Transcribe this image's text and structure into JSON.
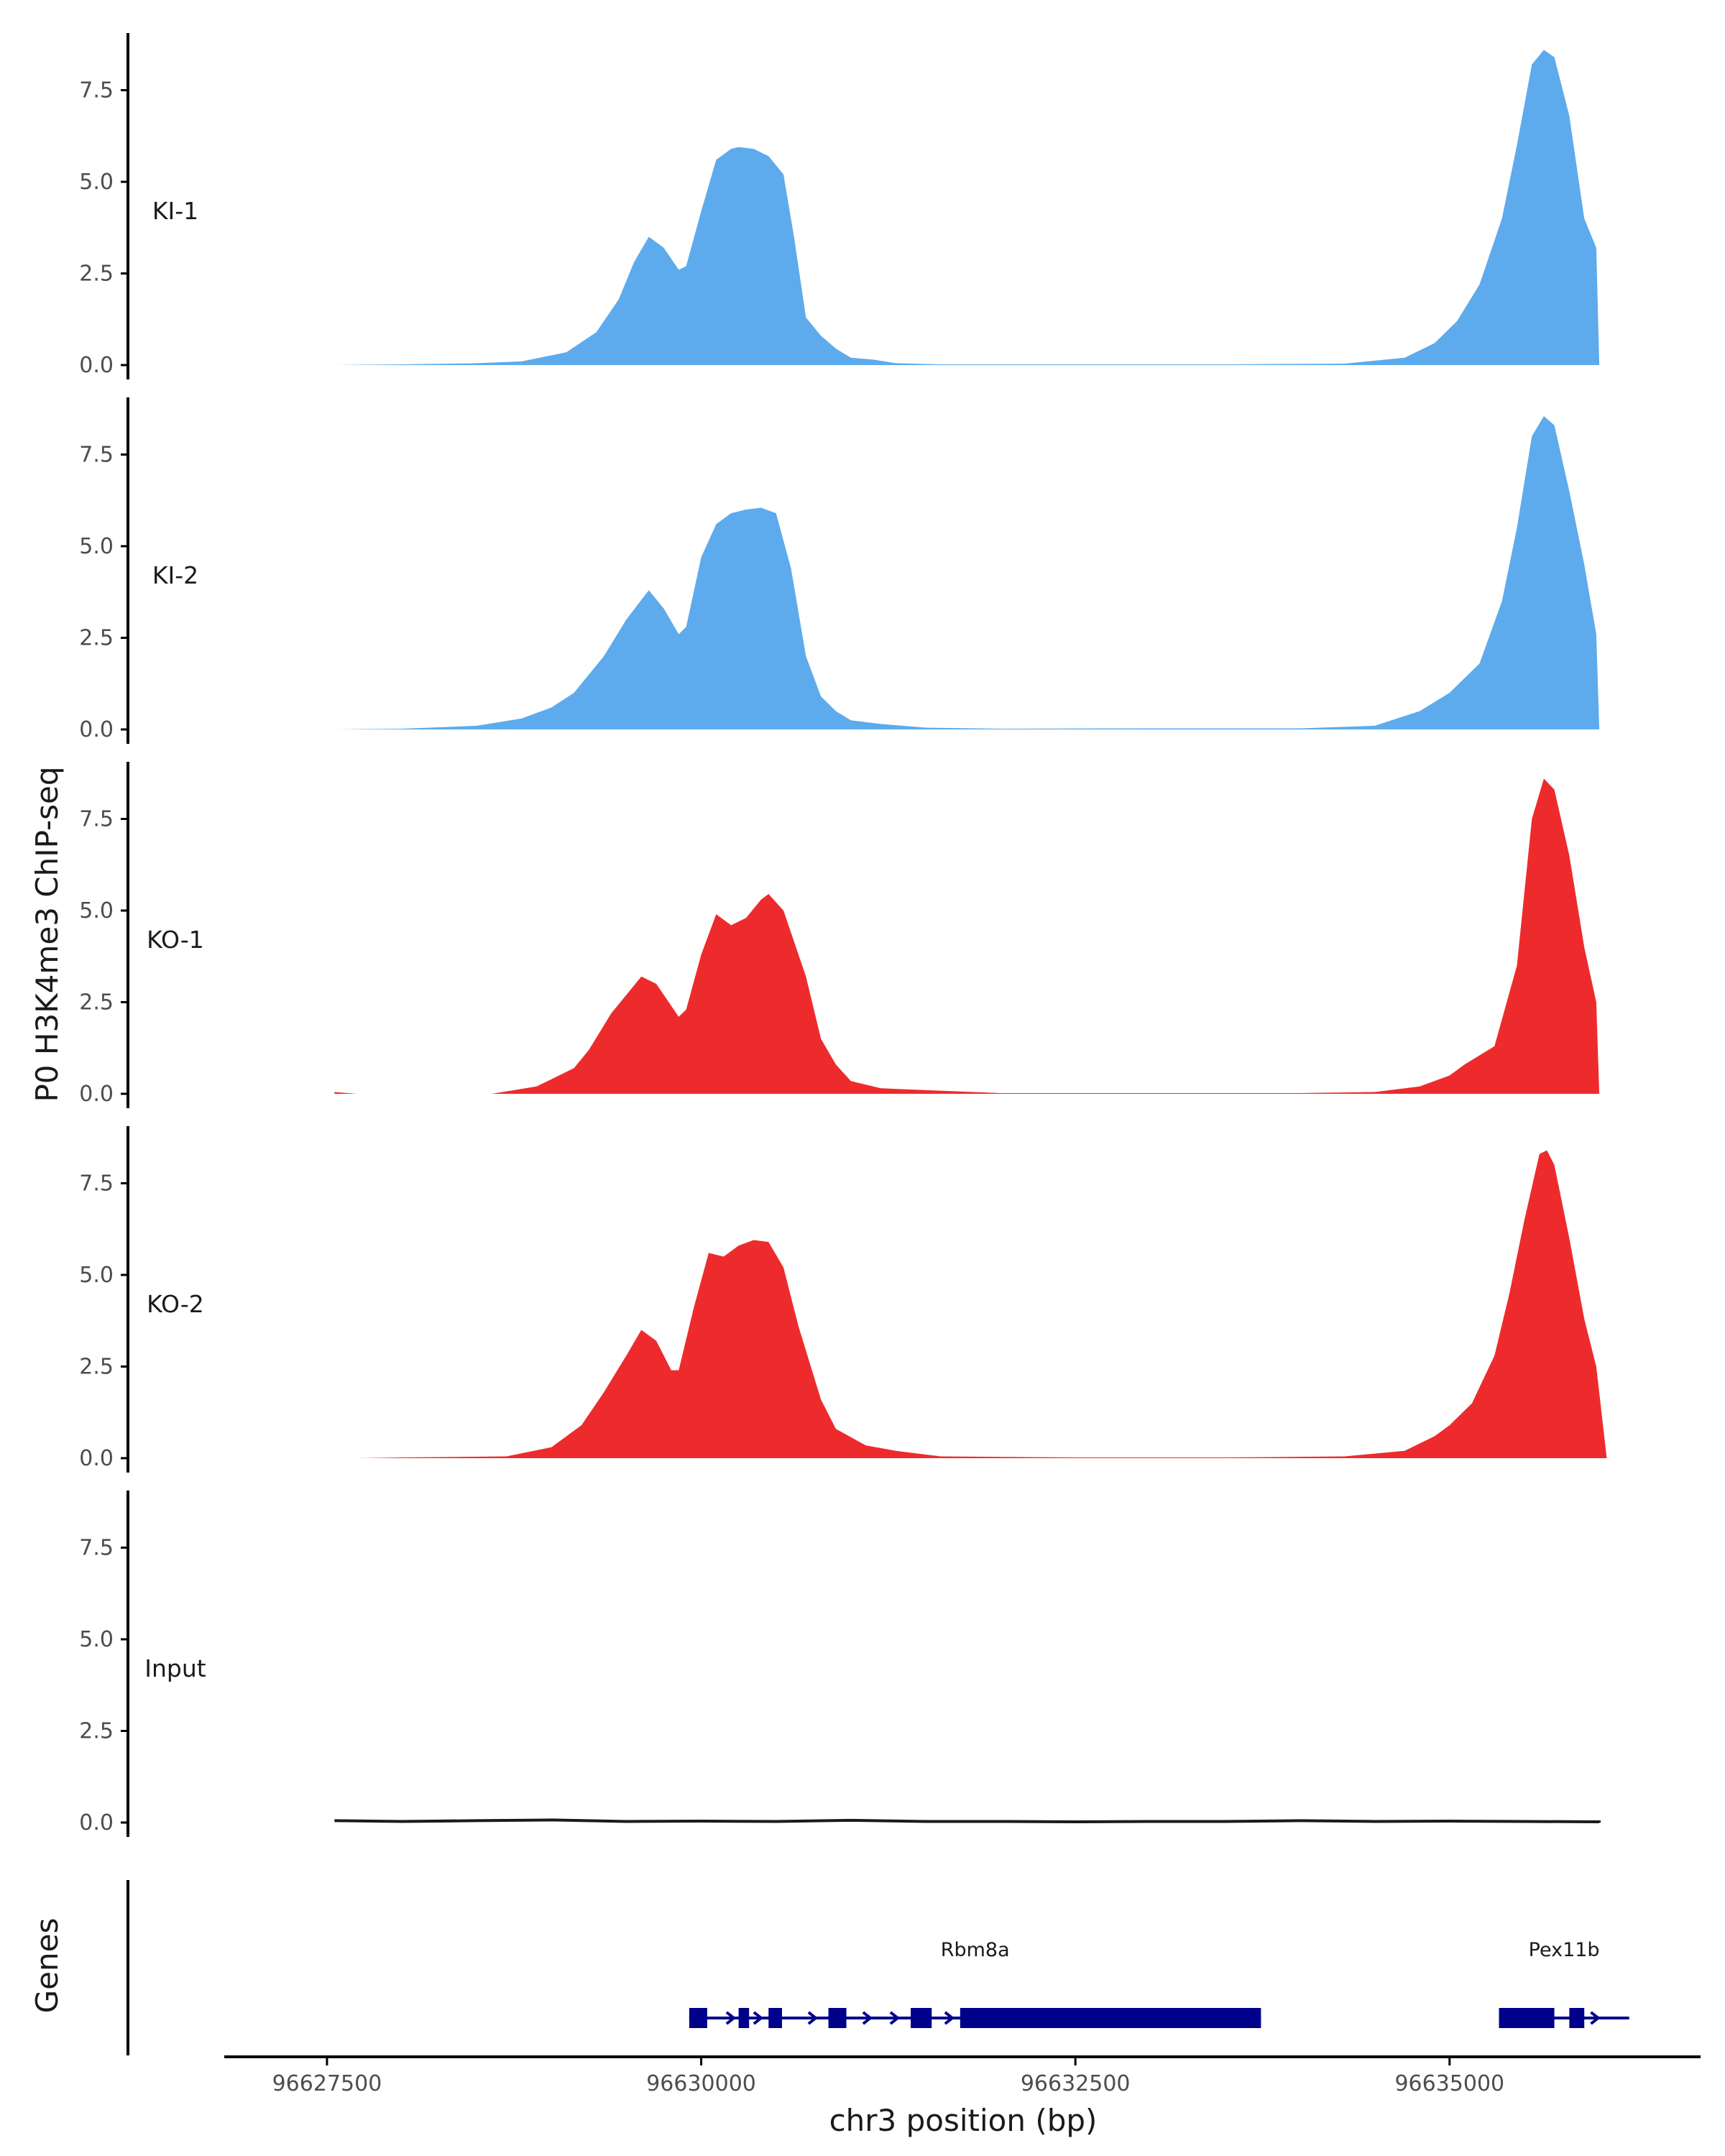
{
  "chart_data": {
    "type": "area",
    "title": "",
    "ylabel": "P0 H3K4me3 ChIP-seq",
    "xlabel": "chr3 position (bp)",
    "gene_panel_label": "Genes",
    "xlim": [
      96626900,
      96636600
    ],
    "ylim": [
      0,
      9
    ],
    "x_ticks": [
      96627500,
      96630000,
      96632500,
      96635000
    ],
    "x_tick_labels": [
      "96627500",
      "96630000",
      "96632500",
      "96635000"
    ],
    "y_ticks": [
      0,
      2.5,
      5,
      7.5
    ],
    "y_tick_labels": [
      "0.0",
      "2.5",
      "5.0",
      "7.5"
    ],
    "colors": {
      "KI": "#5dabec",
      "KO": "#ee2b2c",
      "Input": "#1a1a1a",
      "gene": "#00008b",
      "axis": "#000000"
    },
    "tracks": [
      {
        "name": "KI-1",
        "color": "#5dabec",
        "points": [
          [
            96627550,
            0
          ],
          [
            96628000,
            0.02
          ],
          [
            96628500,
            0.05
          ],
          [
            96628800,
            0.1
          ],
          [
            96629100,
            0.35
          ],
          [
            96629300,
            0.9
          ],
          [
            96629450,
            1.8
          ],
          [
            96629550,
            2.8
          ],
          [
            96629650,
            3.5
          ],
          [
            96629750,
            3.2
          ],
          [
            96629850,
            2.6
          ],
          [
            96629900,
            2.7
          ],
          [
            96630000,
            4.2
          ],
          [
            96630100,
            5.6
          ],
          [
            96630200,
            5.9
          ],
          [
            96630250,
            5.95
          ],
          [
            96630350,
            5.9
          ],
          [
            96630450,
            5.7
          ],
          [
            96630550,
            5.2
          ],
          [
            96630620,
            3.5
          ],
          [
            96630700,
            1.3
          ],
          [
            96630800,
            0.8
          ],
          [
            96630900,
            0.45
          ],
          [
            96631000,
            0.2
          ],
          [
            96631150,
            0.15
          ],
          [
            96631300,
            0.05
          ],
          [
            96631600,
            0.02
          ],
          [
            96632500,
            0.02
          ],
          [
            96633500,
            0.02
          ],
          [
            96634300,
            0.04
          ],
          [
            96634700,
            0.2
          ],
          [
            96634900,
            0.6
          ],
          [
            96635050,
            1.2
          ],
          [
            96635200,
            2.2
          ],
          [
            96635350,
            4.0
          ],
          [
            96635450,
            6.0
          ],
          [
            96635550,
            8.2
          ],
          [
            96635630,
            8.6
          ],
          [
            96635700,
            8.4
          ],
          [
            96635800,
            6.8
          ],
          [
            96635900,
            4.0
          ],
          [
            96635980,
            3.2
          ],
          [
            96636000,
            0
          ]
        ]
      },
      {
        "name": "KI-2",
        "color": "#5dabec",
        "points": [
          [
            96627550,
            0
          ],
          [
            96628000,
            0.02
          ],
          [
            96628500,
            0.1
          ],
          [
            96628800,
            0.3
          ],
          [
            96629000,
            0.6
          ],
          [
            96629150,
            1.0
          ],
          [
            96629350,
            2.0
          ],
          [
            96629500,
            3.0
          ],
          [
            96629650,
            3.8
          ],
          [
            96629750,
            3.3
          ],
          [
            96629850,
            2.6
          ],
          [
            96629900,
            2.8
          ],
          [
            96630000,
            4.7
          ],
          [
            96630100,
            5.6
          ],
          [
            96630200,
            5.9
          ],
          [
            96630300,
            6.0
          ],
          [
            96630400,
            6.05
          ],
          [
            96630500,
            5.9
          ],
          [
            96630600,
            4.4
          ],
          [
            96630700,
            2.0
          ],
          [
            96630800,
            0.9
          ],
          [
            96630900,
            0.5
          ],
          [
            96631000,
            0.25
          ],
          [
            96631200,
            0.15
          ],
          [
            96631500,
            0.05
          ],
          [
            96632000,
            0.02
          ],
          [
            96633000,
            0.03
          ],
          [
            96634000,
            0.03
          ],
          [
            96634500,
            0.1
          ],
          [
            96634800,
            0.5
          ],
          [
            96635000,
            1.0
          ],
          [
            96635200,
            1.8
          ],
          [
            96635350,
            3.5
          ],
          [
            96635450,
            5.5
          ],
          [
            96635550,
            8.0
          ],
          [
            96635630,
            8.55
          ],
          [
            96635700,
            8.3
          ],
          [
            96635800,
            6.5
          ],
          [
            96635900,
            4.5
          ],
          [
            96635980,
            2.6
          ],
          [
            96636000,
            0
          ]
        ]
      },
      {
        "name": "KO-1",
        "color": "#ee2b2c",
        "points": [
          [
            96627550,
            0.05
          ],
          [
            96627700,
            0
          ],
          [
            96628600,
            0
          ],
          [
            96628900,
            0.2
          ],
          [
            96629050,
            0.5
          ],
          [
            96629150,
            0.7
          ],
          [
            96629250,
            1.2
          ],
          [
            96629400,
            2.2
          ],
          [
            96629600,
            3.2
          ],
          [
            96629700,
            3.0
          ],
          [
            96629850,
            2.1
          ],
          [
            96629900,
            2.3
          ],
          [
            96630000,
            3.8
          ],
          [
            96630100,
            4.9
          ],
          [
            96630200,
            4.6
          ],
          [
            96630300,
            4.8
          ],
          [
            96630400,
            5.3
          ],
          [
            96630450,
            5.45
          ],
          [
            96630550,
            5.0
          ],
          [
            96630700,
            3.2
          ],
          [
            96630800,
            1.5
          ],
          [
            96630900,
            0.8
          ],
          [
            96631000,
            0.35
          ],
          [
            96631200,
            0.15
          ],
          [
            96631500,
            0.1
          ],
          [
            96632000,
            0.02
          ],
          [
            96633000,
            0.02
          ],
          [
            96634000,
            0.02
          ],
          [
            96634500,
            0.05
          ],
          [
            96634800,
            0.2
          ],
          [
            96635000,
            0.5
          ],
          [
            96635100,
            0.8
          ],
          [
            96635300,
            1.3
          ],
          [
            96635450,
            3.5
          ],
          [
            96635550,
            7.5
          ],
          [
            96635630,
            8.6
          ],
          [
            96635700,
            8.3
          ],
          [
            96635800,
            6.5
          ],
          [
            96635900,
            4.0
          ],
          [
            96635980,
            2.5
          ],
          [
            96636000,
            0
          ]
        ]
      },
      {
        "name": "KO-2",
        "color": "#ee2b2c",
        "points": [
          [
            96627700,
            0
          ],
          [
            96628000,
            0.02
          ],
          [
            96628700,
            0.05
          ],
          [
            96629000,
            0.3
          ],
          [
            96629200,
            0.9
          ],
          [
            96629350,
            1.8
          ],
          [
            96629500,
            2.8
          ],
          [
            96629600,
            3.5
          ],
          [
            96629700,
            3.2
          ],
          [
            96629800,
            2.4
          ],
          [
            96629850,
            2.4
          ],
          [
            96629950,
            4.1
          ],
          [
            96630050,
            5.6
          ],
          [
            96630150,
            5.5
          ],
          [
            96630250,
            5.8
          ],
          [
            96630350,
            5.95
          ],
          [
            96630450,
            5.9
          ],
          [
            96630550,
            5.2
          ],
          [
            96630650,
            3.6
          ],
          [
            96630800,
            1.6
          ],
          [
            96630900,
            0.8
          ],
          [
            96631100,
            0.35
          ],
          [
            96631300,
            0.2
          ],
          [
            96631600,
            0.05
          ],
          [
            96632500,
            0.02
          ],
          [
            96633500,
            0.02
          ],
          [
            96634300,
            0.05
          ],
          [
            96634700,
            0.2
          ],
          [
            96634900,
            0.6
          ],
          [
            96635000,
            0.9
          ],
          [
            96635150,
            1.5
          ],
          [
            96635300,
            2.8
          ],
          [
            96635400,
            4.5
          ],
          [
            96635500,
            6.5
          ],
          [
            96635600,
            8.3
          ],
          [
            96635650,
            8.4
          ],
          [
            96635700,
            8.0
          ],
          [
            96635800,
            6.0
          ],
          [
            96635900,
            3.8
          ],
          [
            96635980,
            2.5
          ],
          [
            96636050,
            0
          ]
        ]
      },
      {
        "name": "Input",
        "color": "#1a1a1a",
        "points": [
          [
            96627550,
            0.05
          ],
          [
            96628000,
            0.03
          ],
          [
            96628500,
            0.05
          ],
          [
            96629000,
            0.07
          ],
          [
            96629500,
            0.03
          ],
          [
            96630000,
            0.04
          ],
          [
            96630500,
            0.03
          ],
          [
            96631000,
            0.06
          ],
          [
            96631500,
            0.03
          ],
          [
            96632000,
            0.03
          ],
          [
            96632500,
            0.02
          ],
          [
            96633000,
            0.03
          ],
          [
            96633500,
            0.03
          ],
          [
            96634000,
            0.05
          ],
          [
            96634500,
            0.03
          ],
          [
            96635000,
            0.04
          ],
          [
            96635500,
            0.03
          ],
          [
            96636000,
            0.02
          ],
          [
            96636000,
            0
          ]
        ]
      }
    ],
    "genes": [
      {
        "name": "Rbm8a",
        "start": 96629920,
        "end": 96633740,
        "blocks": [
          [
            96629920,
            96630040
          ],
          [
            96630250,
            96630320
          ],
          [
            96630450,
            96630540
          ],
          [
            96630850,
            96630970
          ],
          [
            96631400,
            96631540
          ],
          [
            96631730,
            96633740
          ]
        ]
      },
      {
        "name": "Pex11b",
        "start": 96635330,
        "end": 96636200,
        "blocks": [
          [
            96635330,
            96635700
          ],
          [
            96635800,
            96635900
          ]
        ]
      }
    ]
  }
}
